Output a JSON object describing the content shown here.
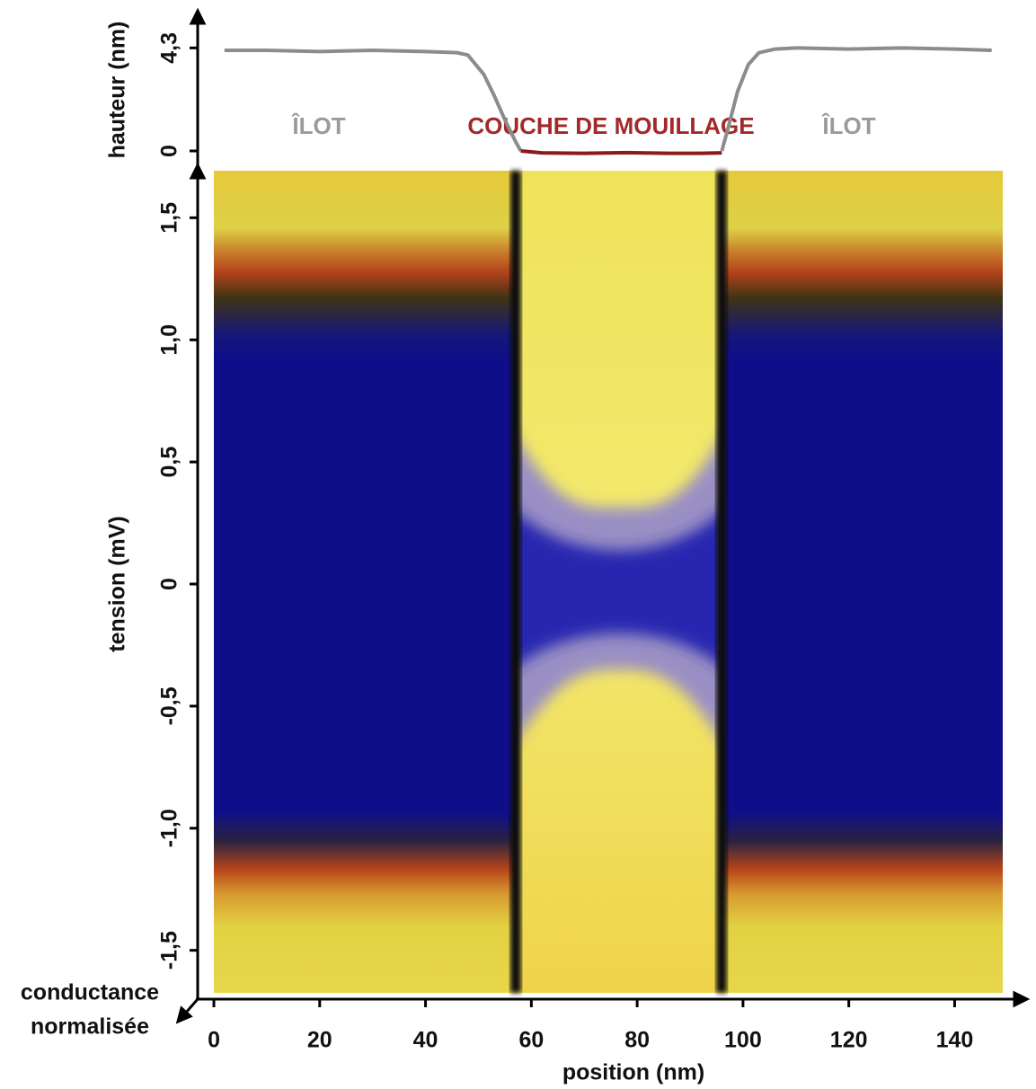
{
  "chart_data": [
    {
      "type": "line",
      "y_label": "hauteur (nm)",
      "xlim": [
        -3.4,
        153
      ],
      "ylim": [
        -0.6,
        5.7
      ],
      "yticks": [
        0,
        {
          "value": 4.3,
          "label": "4,3"
        }
      ],
      "annotations": [
        "ÎLOT",
        "COUCHE DE MOUILLAGE",
        "ÎLOT"
      ],
      "series": [
        {
          "color": "#8c8c8c",
          "x": [
            2,
            10,
            20,
            30,
            40,
            46,
            48,
            51,
            53,
            55,
            57,
            58
          ],
          "values": [
            4.2,
            4.2,
            4.15,
            4.2,
            4.15,
            4.1,
            4.0,
            3.2,
            2.3,
            1.3,
            0.4,
            0
          ]
        },
        {
          "color": "#8b1a1a",
          "x": [
            58,
            62,
            70,
            78,
            86,
            92,
            96
          ],
          "values": [
            0,
            -0.08,
            -0.1,
            -0.07,
            -0.1,
            -0.1,
            -0.08
          ]
        },
        {
          "color": "#8c8c8c",
          "x": [
            96,
            97,
            99,
            101,
            103,
            106,
            110,
            120,
            130,
            140,
            147
          ],
          "values": [
            0,
            0.8,
            2.5,
            3.6,
            4.1,
            4.25,
            4.3,
            4.25,
            4.3,
            4.25,
            4.2
          ]
        }
      ]
    },
    {
      "type": "heatmap",
      "x_label": "position (nm)",
      "y_label": "tension (mV)",
      "z_label": [
        "conductance",
        "normalisée"
      ],
      "xlim": [
        -3.4,
        153
      ],
      "ylim": [
        -1.7,
        1.7
      ],
      "xticks": [
        0,
        20,
        40,
        60,
        80,
        100,
        120,
        140
      ],
      "yticks": [
        {
          "value": 1.5,
          "label": "1,5"
        },
        {
          "value": 1.0,
          "label": "1,0"
        },
        {
          "value": 0.5,
          "label": "0,5"
        },
        0,
        {
          "value": -0.5,
          "label": "-0,5"
        },
        {
          "value": -1.0,
          "label": "-1,0"
        },
        {
          "value": -1.5,
          "label": "-1,5"
        }
      ]
    }
  ]
}
